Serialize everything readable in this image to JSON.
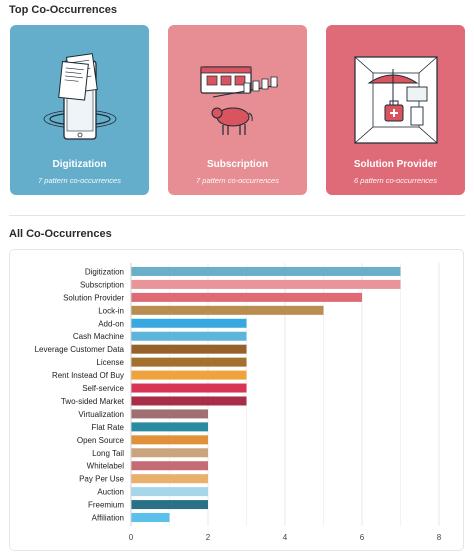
{
  "top_section": {
    "title": "Top Co-Occurrences",
    "cards": [
      {
        "title": "Digitization",
        "subtitle": "7 pattern co-occurrences",
        "color": "#65aecb",
        "icon": "tablet-documents-illustration"
      },
      {
        "title": "Subscription",
        "subtitle": "7 pattern co-occurrences",
        "color": "#e68e93",
        "icon": "milk-delivery-cow-illustration"
      },
      {
        "title": "Solution Provider",
        "subtitle": "6 pattern co-occurrences",
        "color": "#df6b78",
        "icon": "shop-kiosk-illustration"
      }
    ]
  },
  "all_section": {
    "title": "All Co-Occurrences"
  },
  "chart_data": {
    "type": "bar",
    "orientation": "horizontal",
    "title": "",
    "xlabel": "",
    "ylabel": "",
    "xlim": [
      0,
      8
    ],
    "x_ticks": [
      "0",
      "2",
      "4",
      "6",
      "8"
    ],
    "grid": true,
    "categories": [
      "Digitization",
      "Subscription",
      "Solution Provider",
      "Lock-in",
      "Add-on",
      "Cash Machine",
      "Leverage Customer Data",
      "License",
      "Rent Instead Of Buy",
      "Self-service",
      "Two-sided Market",
      "Virtualization",
      "Flat Rate",
      "Open Source",
      "Long Tail",
      "Whitelabel",
      "Pay Per Use",
      "Auction",
      "Freemium",
      "Affiliation"
    ],
    "values": [
      7,
      7,
      6,
      5,
      3,
      3,
      3,
      3,
      3,
      3,
      3,
      2,
      2,
      2,
      2,
      2,
      2,
      2,
      2,
      1
    ],
    "colors": [
      "#6aafca",
      "#e9949a",
      "#e06a74",
      "#b98d50",
      "#38a9e0",
      "#5cb6dc",
      "#96612a",
      "#a4702e",
      "#f0a33c",
      "#d83454",
      "#a72d49",
      "#a06f72",
      "#2a8ba0",
      "#e0913a",
      "#c9a47c",
      "#c56b74",
      "#e8b06a",
      "#a7d6ea",
      "#2a7188",
      "#5bc0ea"
    ]
  }
}
